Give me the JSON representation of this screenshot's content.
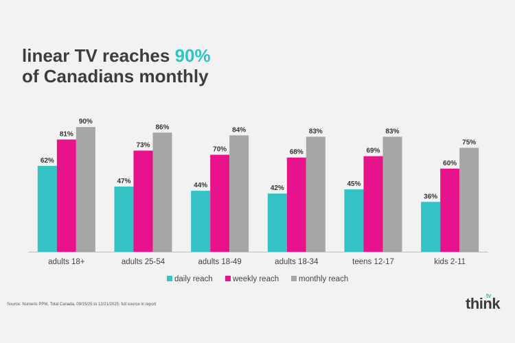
{
  "title": {
    "line1_prefix": "linear TV reaches ",
    "line1_highlight": "90%",
    "line2": "of Canadians monthly"
  },
  "source": "Source: Numeris PPM, Total Canada, 09/15/25 to 12/21/2025; full source in report",
  "logo": {
    "main": "think",
    "super": "tv"
  },
  "colors": {
    "daily": "#34c2c4",
    "weekly": "#e8128c",
    "monthly": "#a6a6a6",
    "accent": "#2ec4c6"
  },
  "chart_data": {
    "type": "bar",
    "categories": [
      "adults 18+",
      "adults 25-54",
      "adults 18-49",
      "adults 18-34",
      "teens 12-17",
      "kids 2-11"
    ],
    "series": [
      {
        "name": "daily reach",
        "values": [
          62,
          47,
          44,
          42,
          45,
          36
        ],
        "labels": [
          "62%",
          "47%",
          "44%",
          "42%",
          "45%",
          "36%"
        ]
      },
      {
        "name": "weekly reach",
        "values": [
          81,
          73,
          70,
          68,
          69,
          60
        ],
        "labels": [
          "81%",
          "73%",
          "70%",
          "68%",
          "69%",
          "60%"
        ]
      },
      {
        "name": "monthly reach",
        "values": [
          90,
          86,
          84,
          83,
          83,
          75
        ],
        "labels": [
          "90%",
          "86%",
          "84%",
          "83%",
          "83%",
          "75%"
        ]
      }
    ],
    "ylim": [
      0,
      100
    ],
    "legend": "bottom",
    "grid": false
  }
}
